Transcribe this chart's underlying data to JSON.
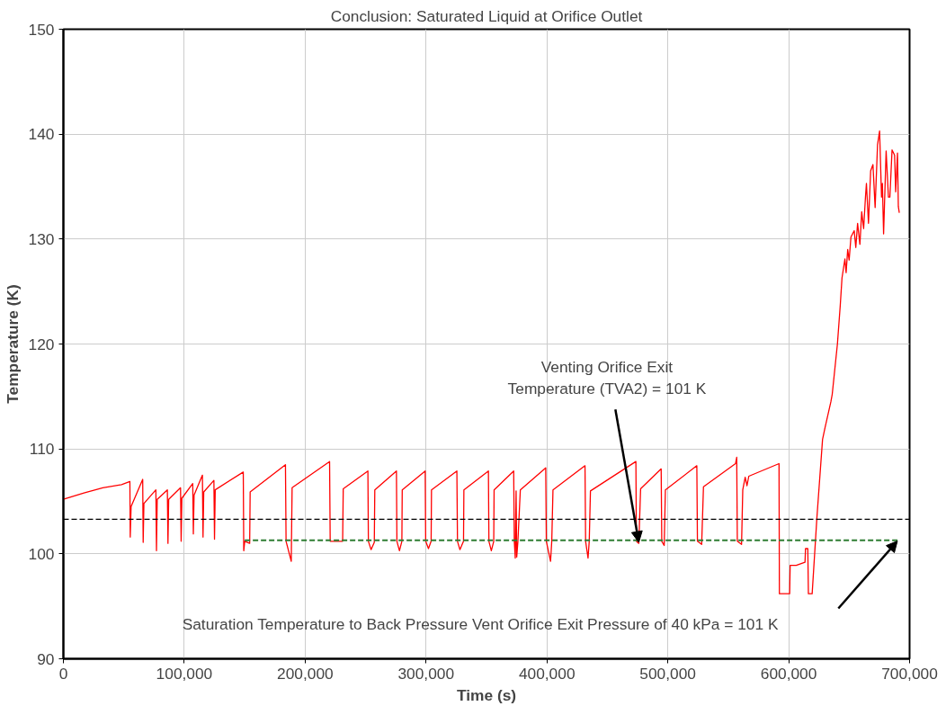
{
  "chart_data": {
    "type": "line",
    "title": "Conclusion: Saturated Liquid at Orifice Outlet",
    "xlabel": "Time (s)",
    "ylabel": "Temperature (K)",
    "xlim": [
      0,
      700000
    ],
    "ylim": [
      90,
      150
    ],
    "xticks": [
      0,
      {
        "value": 100000,
        "label": "100,000"
      },
      {
        "value": 200000,
        "label": "200,000"
      },
      {
        "value": 300000,
        "label": "300,000"
      },
      {
        "value": 400000,
        "label": "400,000"
      },
      {
        "value": 500000,
        "label": "500,000"
      },
      {
        "value": 600000,
        "label": "600,000"
      },
      {
        "value": 700000,
        "label": "700,000"
      }
    ],
    "yticks": [
      90,
      100,
      110,
      120,
      130,
      140,
      150
    ],
    "grid": true,
    "marker": "none",
    "series": [
      {
        "color": "#ff0000",
        "line_style": "solid",
        "x": [
          0,
          17000,
          32600,
          48100,
          55000,
          55300,
          56000,
          65600,
          66000,
          66600,
          76500,
          77000,
          77600,
          86000,
          86500,
          87100,
          96900,
          97400,
          98000,
          107000,
          107500,
          108100,
          115000,
          115500,
          116100,
          124500,
          125000,
          125600,
          148800,
          149200,
          150000,
          154100,
          154500,
          183700,
          184200,
          188500,
          189200,
          220200,
          220700,
          231000,
          231500,
          251900,
          252300,
          254500,
          257200,
          257600,
          275500,
          275900,
          278000,
          280000,
          280300,
          299300,
          299700,
          302000,
          304200,
          304500,
          325500,
          326000,
          328000,
          331000,
          331300,
          351600,
          352000,
          354000,
          356000,
          356300,
          372500,
          373000,
          373800,
          374500,
          375000,
          376000,
          378000,
          399000,
          399500,
          403000,
          404000,
          405000,
          431500,
          432000,
          434000,
          435000,
          436000,
          473600,
          474000,
          476000,
          477500,
          494500,
          495000,
          497000,
          498000,
          524000,
          524500,
          528000,
          529500,
          556000,
          557000,
          557500,
          561000,
          562000,
          564000,
          565500,
          567000,
          592000,
          592300,
          600800,
          601200,
          606200,
          613500,
          613900,
          615800,
          616300,
          619400,
          623300,
          628000,
          630000,
          634900,
          636000,
          640300,
          642600,
          644100,
          646500,
          647500,
          648800,
          650000,
          651500,
          654200,
          655500,
          657000,
          658900,
          660400,
          662000,
          663500,
          664300,
          666000,
          667800,
          669700,
          671500,
          673500,
          675200,
          676800,
          677500,
          678500,
          680600,
          682500,
          683700,
          685500,
          687600,
          688500,
          690000,
          690700,
          691500
        ],
        "values": [
          105.2,
          105.8,
          106.3,
          106.6,
          106.9,
          101.6,
          104.5,
          107.1,
          101.1,
          104.8,
          106.1,
          100.3,
          105.2,
          106.1,
          101.0,
          105.2,
          106.3,
          101.2,
          105.3,
          106.7,
          101.9,
          105.6,
          107.5,
          101.6,
          105.9,
          107.0,
          101.4,
          106.1,
          107.8,
          100.3,
          101.2,
          101.0,
          105.9,
          108.5,
          101.2,
          99.3,
          106.3,
          108.8,
          101.2,
          101.2,
          106.2,
          107.9,
          101.2,
          100.4,
          101.1,
          106.1,
          107.9,
          101.2,
          100.3,
          101.2,
          106.1,
          107.9,
          101.2,
          100.5,
          101.2,
          106.1,
          107.9,
          101.2,
          100.4,
          101.2,
          106.1,
          107.9,
          101.2,
          100.3,
          101.2,
          106.1,
          107.9,
          101.2,
          99.6,
          106.0,
          99.7,
          101.2,
          106.1,
          108.2,
          101.2,
          99.3,
          101.2,
          106.1,
          108.4,
          101.2,
          99.6,
          101.2,
          106.0,
          108.8,
          101.2,
          101.0,
          106.2,
          108.1,
          101.2,
          100.8,
          106.1,
          108.4,
          101.2,
          100.9,
          106.4,
          108.6,
          109.2,
          101.2,
          100.9,
          106.1,
          107.3,
          106.5,
          107.4,
          108.6,
          96.2,
          96.2,
          98.9,
          98.9,
          99.2,
          100.5,
          100.5,
          96.2,
          96.2,
          103.4,
          110.9,
          112.0,
          114.5,
          115.2,
          120.0,
          123.6,
          126.3,
          128.1,
          126.8,
          129.0,
          128.0,
          130.2,
          130.8,
          129.2,
          131.5,
          129.5,
          132.6,
          131.0,
          134.0,
          135.3,
          131.5,
          136.5,
          137.1,
          133.0,
          139.0,
          140.3,
          134.0,
          135.3,
          130.5,
          138.4,
          134.0,
          134.0,
          138.5,
          138.0,
          134.5,
          138.2,
          133.1,
          132.5
        ]
      },
      {
        "color": "#2e7d32",
        "line_style": "dashed",
        "x": [
          150000,
          690000
        ],
        "values": [
          101.3,
          101.3
        ]
      }
    ],
    "ref_lines": [
      {
        "axis": "y",
        "value": 103.3,
        "color": "#000000",
        "line_style": "dashed"
      }
    ],
    "annotations": [
      {
        "text": "Venting Orifice Exit\nTemperature (TVA2) = 101 K",
        "x": 476000,
        "y": 101.1
      },
      "Saturation Temperature to Back Pressure Vent Orifice Exit Pressure of 40 kPa = 101 K"
    ]
  }
}
